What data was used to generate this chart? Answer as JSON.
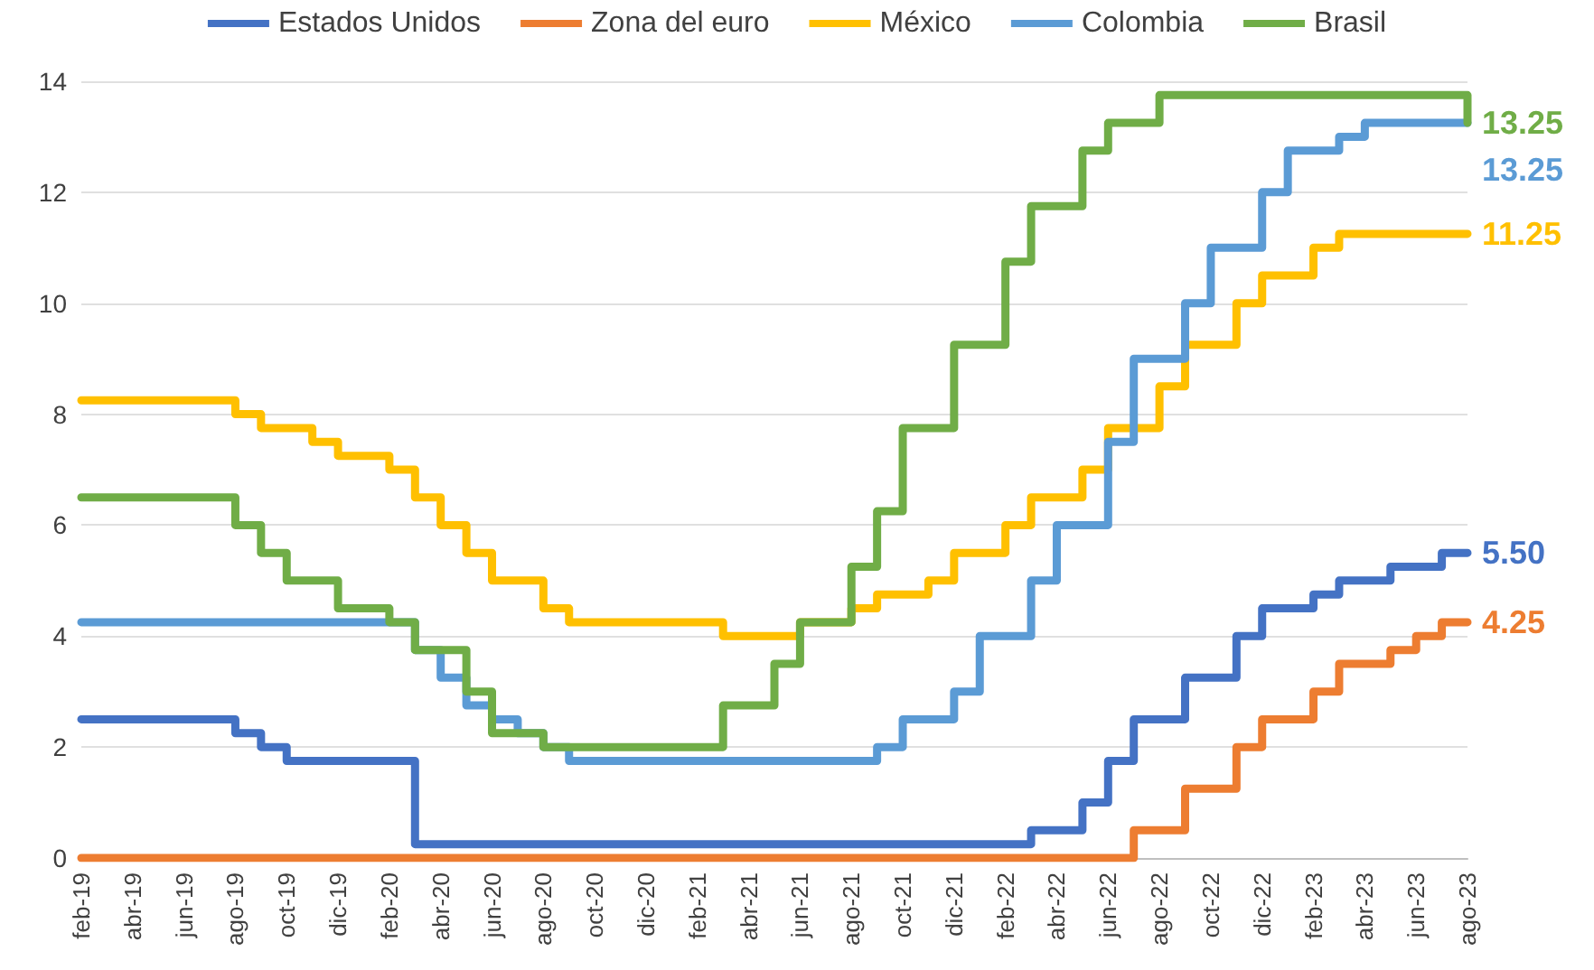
{
  "chart_data": {
    "type": "step",
    "categories": [
      "feb-19",
      null,
      "abr-19",
      null,
      "jun-19",
      null,
      "ago-19",
      null,
      "oct-19",
      null,
      "dic-19",
      null,
      "feb-20",
      null,
      "abr-20",
      null,
      "jun-20",
      null,
      "ago-20",
      null,
      "oct-20",
      null,
      "dic-20",
      null,
      "feb-21",
      null,
      "abr-21",
      null,
      "jun-21",
      null,
      "ago-21",
      null,
      "oct-21",
      null,
      "dic-21",
      null,
      "feb-22",
      null,
      "abr-22",
      null,
      "jun-22",
      null,
      "ago-22",
      null,
      "oct-22",
      null,
      "dic-22",
      null,
      "feb-23",
      null,
      "abr-23",
      null,
      "jun-23",
      null,
      "ago-23"
    ],
    "series": [
      {
        "name": "Estados Unidos",
        "color": "#4472c4",
        "values": [
          2.5,
          2.5,
          2.5,
          2.5,
          2.5,
          2.5,
          2.25,
          2.0,
          1.75,
          1.75,
          1.75,
          1.75,
          1.75,
          0.25,
          0.25,
          0.25,
          0.25,
          0.25,
          0.25,
          0.25,
          0.25,
          0.25,
          0.25,
          0.25,
          0.25,
          0.25,
          0.25,
          0.25,
          0.25,
          0.25,
          0.25,
          0.25,
          0.25,
          0.25,
          0.25,
          0.25,
          0.25,
          0.5,
          0.5,
          1.0,
          1.75,
          2.5,
          2.5,
          3.25,
          3.25,
          4.0,
          4.5,
          4.5,
          4.75,
          5.0,
          5.0,
          5.25,
          5.25,
          5.5,
          5.5
        ],
        "value_labels": [
          null,
          null,
          null,
          null,
          null,
          null,
          null,
          null,
          null,
          null,
          null,
          null,
          null,
          null,
          null,
          null,
          null,
          null,
          null,
          null,
          null,
          null,
          null,
          null,
          null,
          null,
          null,
          null,
          null,
          null,
          null,
          null,
          null,
          null,
          null,
          null,
          null,
          null,
          null,
          null,
          null,
          null,
          null,
          null,
          null,
          null,
          null,
          null,
          null,
          null,
          null,
          null,
          null,
          null,
          "5.50"
        ]
      },
      {
        "name": "Zona del euro",
        "color": "#ed7d31",
        "values": [
          0,
          0,
          0,
          0,
          0,
          0,
          0,
          0,
          0,
          0,
          0,
          0,
          0,
          0,
          0,
          0,
          0,
          0,
          0,
          0,
          0,
          0,
          0,
          0,
          0,
          0,
          0,
          0,
          0,
          0,
          0,
          0,
          0,
          0,
          0,
          0,
          0,
          0,
          0,
          0,
          0,
          0.5,
          0.5,
          1.25,
          1.25,
          2.0,
          2.5,
          2.5,
          3.0,
          3.5,
          3.5,
          3.75,
          4.0,
          4.25,
          4.25
        ],
        "value_labels": [
          null,
          null,
          null,
          null,
          null,
          null,
          null,
          null,
          null,
          null,
          null,
          null,
          null,
          null,
          null,
          null,
          null,
          null,
          null,
          null,
          null,
          null,
          null,
          null,
          null,
          null,
          null,
          null,
          null,
          null,
          null,
          null,
          null,
          null,
          null,
          null,
          null,
          null,
          null,
          null,
          null,
          null,
          null,
          null,
          null,
          null,
          null,
          null,
          null,
          null,
          null,
          null,
          null,
          null,
          "4.25"
        ]
      },
      {
        "name": "México",
        "color": "#ffc000",
        "values": [
          8.25,
          8.25,
          8.25,
          8.25,
          8.25,
          8.25,
          8.0,
          7.75,
          7.75,
          7.5,
          7.25,
          7.25,
          7.0,
          6.5,
          6.0,
          5.5,
          5.0,
          5.0,
          4.5,
          4.25,
          4.25,
          4.25,
          4.25,
          4.25,
          4.25,
          4.0,
          4.0,
          4.0,
          4.25,
          4.25,
          4.5,
          4.75,
          4.75,
          5.0,
          5.5,
          5.5,
          6.0,
          6.5,
          6.5,
          7.0,
          7.75,
          7.75,
          8.5,
          9.25,
          9.25,
          10.0,
          10.5,
          10.5,
          11.0,
          11.25,
          11.25,
          11.25,
          11.25,
          11.25,
          11.25
        ],
        "value_labels": [
          null,
          null,
          null,
          null,
          null,
          null,
          null,
          null,
          null,
          null,
          null,
          null,
          null,
          null,
          null,
          null,
          null,
          null,
          null,
          null,
          null,
          null,
          null,
          null,
          null,
          null,
          null,
          null,
          null,
          null,
          null,
          null,
          null,
          null,
          null,
          null,
          null,
          null,
          null,
          null,
          null,
          null,
          null,
          null,
          null,
          null,
          null,
          null,
          null,
          null,
          null,
          null,
          null,
          null,
          "11.25"
        ]
      },
      {
        "name": "Colombia",
        "color": "#5b9bd5",
        "values": [
          4.25,
          4.25,
          4.25,
          4.25,
          4.25,
          4.25,
          4.25,
          4.25,
          4.25,
          4.25,
          4.25,
          4.25,
          4.25,
          3.75,
          3.25,
          2.75,
          2.5,
          2.25,
          2.0,
          1.75,
          1.75,
          1.75,
          1.75,
          1.75,
          1.75,
          1.75,
          1.75,
          1.75,
          1.75,
          1.75,
          1.75,
          2.0,
          2.5,
          2.5,
          3.0,
          4.0,
          4.0,
          5.0,
          6.0,
          6.0,
          7.5,
          9.0,
          9.0,
          10.0,
          11.0,
          11.0,
          12.0,
          12.75,
          12.75,
          13.0,
          13.25,
          13.25,
          13.25,
          13.25,
          13.25
        ],
        "value_labels": [
          null,
          null,
          null,
          null,
          null,
          null,
          null,
          null,
          null,
          null,
          null,
          null,
          null,
          null,
          null,
          null,
          null,
          null,
          null,
          null,
          null,
          null,
          null,
          null,
          null,
          null,
          null,
          null,
          null,
          null,
          null,
          null,
          null,
          null,
          null,
          null,
          null,
          null,
          null,
          null,
          null,
          null,
          null,
          null,
          null,
          null,
          null,
          null,
          null,
          null,
          null,
          null,
          null,
          null,
          "13.25"
        ]
      },
      {
        "name": "Brasil",
        "color": "#70ad47",
        "values": [
          6.5,
          6.5,
          6.5,
          6.5,
          6.5,
          6.5,
          6.0,
          5.5,
          5.0,
          5.0,
          4.5,
          4.5,
          4.25,
          3.75,
          3.75,
          3.0,
          2.25,
          2.25,
          2.0,
          2.0,
          2.0,
          2.0,
          2.0,
          2.0,
          2.0,
          2.75,
          2.75,
          3.5,
          4.25,
          4.25,
          5.25,
          6.25,
          7.75,
          7.75,
          9.25,
          9.25,
          10.75,
          11.75,
          11.75,
          12.75,
          13.25,
          13.25,
          13.75,
          13.75,
          13.75,
          13.75,
          13.75,
          13.75,
          13.75,
          13.75,
          13.75,
          13.75,
          13.75,
          13.75,
          13.25
        ],
        "value_labels": [
          null,
          null,
          null,
          null,
          null,
          null,
          null,
          null,
          null,
          null,
          null,
          null,
          null,
          null,
          null,
          null,
          null,
          null,
          null,
          null,
          null,
          null,
          null,
          null,
          null,
          null,
          null,
          null,
          null,
          null,
          null,
          null,
          null,
          null,
          null,
          null,
          null,
          null,
          null,
          null,
          null,
          null,
          null,
          null,
          null,
          null,
          null,
          null,
          null,
          null,
          null,
          null,
          null,
          null,
          "13.25"
        ]
      }
    ],
    "ylim": [
      0,
      14
    ],
    "yticks": [
      0,
      2,
      4,
      6,
      8,
      10,
      12,
      14
    ],
    "grid": "y",
    "legend": "top",
    "line_style": "solid"
  }
}
